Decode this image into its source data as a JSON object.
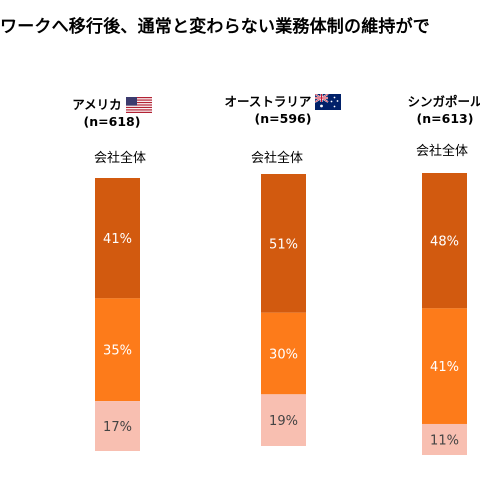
{
  "title": "ワークへ移行後、通常と変わらない業務体制の維持がで",
  "colors": {
    "top": "#d25a0f",
    "middle": "#fd7b1a",
    "bottom": "#f8bfb1"
  },
  "chart_data": {
    "type": "bar",
    "stacked": true,
    "categories": [
      "アメリカ",
      "オーストラリア",
      "シンガポール"
    ],
    "sample_sizes": [
      "(n=618)",
      "(n=596)",
      "(n=613)"
    ],
    "subset_label": "会社全体",
    "series": [
      {
        "values": [
          41,
          51,
          48
        ],
        "labels": [
          "41%",
          "51%",
          "48%"
        ]
      },
      {
        "values": [
          35,
          30,
          41
        ],
        "labels": [
          "35%",
          "30%",
          "41%"
        ]
      },
      {
        "values": [
          17,
          19,
          11
        ],
        "labels": [
          "17%",
          "19%",
          "11%"
        ]
      }
    ]
  }
}
